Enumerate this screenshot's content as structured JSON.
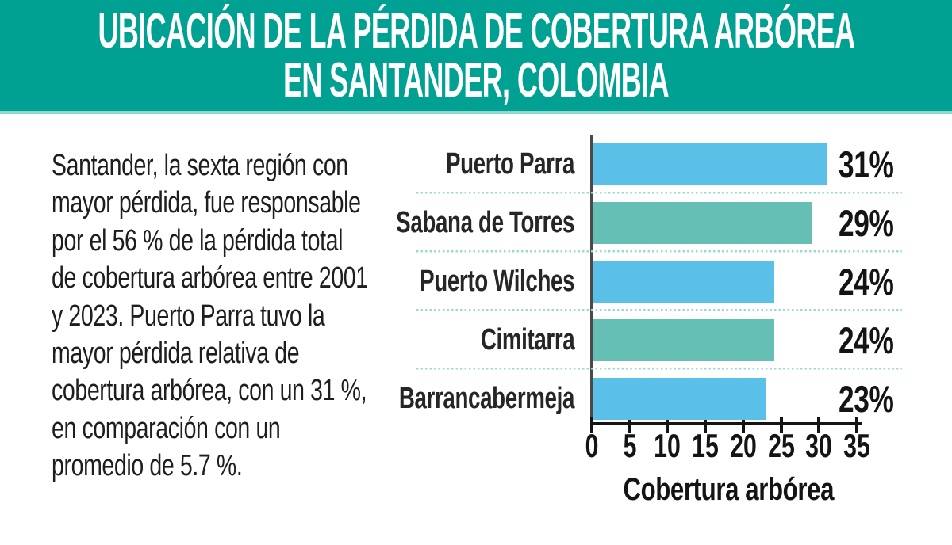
{
  "page": {
    "background": "#ffffff"
  },
  "header": {
    "bg_color": "#00a093",
    "edge_color": "#8fd8d0",
    "text_color": "#ffffff",
    "title_line1": "UBICACIÓN DE LA PÉRDIDA DE COBERTURA ARBÓREA",
    "title_line2": "EN SANTANDER, COLOMBIA"
  },
  "intro": {
    "text": "Santander, la sexta región con mayor pérdida, fue responsable por el 56 % de la pérdida total de cobertura arbórea entre 2001 y 2023. Puerto Parra tuvo la mayor pérdida relativa de cobertura arbórea, con un 31 %, en comparación con un promedio de 5.7 %.",
    "lines": [
      "Santander, la sexta región con",
      "mayor pérdida, fue responsable",
      "por el 56 % de la pérdida total",
      "de cobertura arbórea entre 2001",
      "y 2023. Puerto Parra tuvo la",
      "mayor pérdida relativa de",
      "cobertura arbórea, con un 31 %,",
      "en comparación con un",
      "promedio de 5.7 %."
    ]
  },
  "chart_data": {
    "type": "bar",
    "orientation": "horizontal",
    "title": "",
    "categories": [
      "Puerto Parra",
      "Sabana de Torres",
      "Puerto Wilches",
      "Cimitarra",
      "Barrancabermeja"
    ],
    "values": [
      31,
      29,
      24,
      24,
      23
    ],
    "value_labels": [
      "31%",
      "29%",
      "24%",
      "24%",
      "23%"
    ],
    "bar_colors": [
      "#5bc0e8",
      "#65bfb4",
      "#5bc0e8",
      "#65bfb4",
      "#5bc0e8"
    ],
    "xlabel": "Cobertura arbórea",
    "ylabel": "",
    "x_ticks": [
      0,
      5,
      10,
      15,
      20,
      25,
      30,
      35
    ],
    "xlim": [
      0,
      35
    ],
    "legend": "none",
    "grid": "dotted teal separators between rows",
    "separator_color": "#9ed8d2",
    "axis_line_color": "#141414",
    "y_axis_line_color": "#4a4a4a"
  }
}
